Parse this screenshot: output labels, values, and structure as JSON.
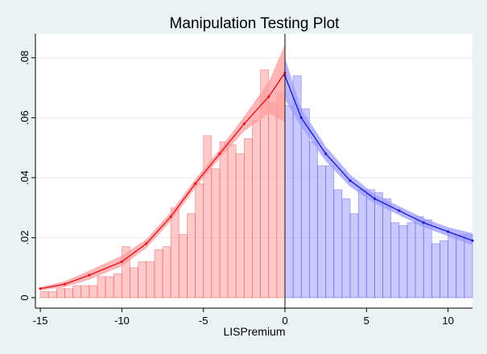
{
  "chart_data": {
    "type": "bar",
    "title": "Manipulation Testing Plot",
    "xlabel": "LISPremium",
    "ylabel": "",
    "xlim": [
      -15.3,
      11.5
    ],
    "ylim": [
      -0.0035,
      0.088
    ],
    "x_ticks": [
      -15,
      -10,
      -5,
      0,
      5,
      10
    ],
    "x_tick_labels": [
      "-15",
      "-10",
      "-5",
      "0",
      "5",
      "10"
    ],
    "y_ticks": [
      0,
      0.02,
      0.04,
      0.06,
      0.08
    ],
    "y_tick_labels": [
      "0",
      ".02",
      ".04",
      ".06",
      ".08"
    ],
    "grid": true,
    "cutoff": 0,
    "colors": {
      "background": "#eaf2f3",
      "plot_bg": "#ffffff",
      "left_line": "#e8141d",
      "left_fill": "#ff9c9c",
      "right_line": "#1e1ed2",
      "right_fill": "#9c9cff",
      "cutoff_line": "#333333",
      "grid": "#e4ecef"
    },
    "histogram": {
      "bin_width": 0.5,
      "left_bins": [
        {
          "x": -15.0,
          "y": 0.002
        },
        {
          "x": -14.5,
          "y": 0.002
        },
        {
          "x": -14.0,
          "y": 0.003
        },
        {
          "x": -13.5,
          "y": 0.003
        },
        {
          "x": -13.0,
          "y": 0.004
        },
        {
          "x": -12.5,
          "y": 0.004
        },
        {
          "x": -12.0,
          "y": 0.004
        },
        {
          "x": -11.5,
          "y": 0.007
        },
        {
          "x": -11.0,
          "y": 0.007
        },
        {
          "x": -10.5,
          "y": 0.008
        },
        {
          "x": -10.0,
          "y": 0.017
        },
        {
          "x": -9.5,
          "y": 0.01
        },
        {
          "x": -9.0,
          "y": 0.012
        },
        {
          "x": -8.5,
          "y": 0.012
        },
        {
          "x": -8.0,
          "y": 0.016
        },
        {
          "x": -7.5,
          "y": 0.017
        },
        {
          "x": -7.0,
          "y": 0.03
        },
        {
          "x": -6.5,
          "y": 0.021
        },
        {
          "x": -6.0,
          "y": 0.028
        },
        {
          "x": -5.5,
          "y": 0.038
        },
        {
          "x": -5.0,
          "y": 0.054
        },
        {
          "x": -4.5,
          "y": 0.043
        },
        {
          "x": -4.0,
          "y": 0.052
        },
        {
          "x": -3.5,
          "y": 0.051
        },
        {
          "x": -3.0,
          "y": 0.048
        },
        {
          "x": -2.5,
          "y": 0.053
        },
        {
          "x": -2.0,
          "y": 0.059
        },
        {
          "x": -1.5,
          "y": 0.076
        },
        {
          "x": -1.0,
          "y": 0.065
        },
        {
          "x": -0.5,
          "y": 0.068
        }
      ],
      "right_bins": [
        {
          "x": 0.0,
          "y": 0.064
        },
        {
          "x": 0.5,
          "y": 0.074
        },
        {
          "x": 1.0,
          "y": 0.063
        },
        {
          "x": 1.5,
          "y": 0.052
        },
        {
          "x": 2.0,
          "y": 0.044
        },
        {
          "x": 2.5,
          "y": 0.044
        },
        {
          "x": 3.0,
          "y": 0.036
        },
        {
          "x": 3.5,
          "y": 0.033
        },
        {
          "x": 4.0,
          "y": 0.028
        },
        {
          "x": 4.5,
          "y": 0.036
        },
        {
          "x": 5.0,
          "y": 0.036
        },
        {
          "x": 5.5,
          "y": 0.035
        },
        {
          "x": 6.0,
          "y": 0.033
        },
        {
          "x": 6.5,
          "y": 0.025
        },
        {
          "x": 7.0,
          "y": 0.024
        },
        {
          "x": 7.5,
          "y": 0.025
        },
        {
          "x": 8.0,
          "y": 0.027
        },
        {
          "x": 8.5,
          "y": 0.026
        },
        {
          "x": 9.0,
          "y": 0.018
        },
        {
          "x": 9.5,
          "y": 0.019
        },
        {
          "x": 10.0,
          "y": 0.021
        },
        {
          "x": 10.5,
          "y": 0.021
        },
        {
          "x": 11.0,
          "y": 0.021
        }
      ]
    },
    "series": [
      {
        "side": "left",
        "estimate": [
          [
            -15.0,
            0.003
          ],
          [
            -13.5,
            0.0045
          ],
          [
            -12.0,
            0.0075
          ],
          [
            -10.0,
            0.012
          ],
          [
            -8.5,
            0.018
          ],
          [
            -7.0,
            0.027
          ],
          [
            -5.5,
            0.038
          ],
          [
            -4.0,
            0.048
          ],
          [
            -2.5,
            0.058
          ],
          [
            -1.0,
            0.067
          ],
          [
            0.0,
            0.075
          ]
        ],
        "ci_upper": [
          [
            -15.0,
            0.0035
          ],
          [
            -13.5,
            0.0055
          ],
          [
            -12.0,
            0.009
          ],
          [
            -10.0,
            0.014
          ],
          [
            -8.5,
            0.0195
          ],
          [
            -7.0,
            0.0285
          ],
          [
            -5.5,
            0.0395
          ],
          [
            -4.0,
            0.0495
          ],
          [
            -2.5,
            0.0605
          ],
          [
            -1.0,
            0.072
          ],
          [
            0.0,
            0.0845
          ]
        ],
        "ci_lower": [
          [
            -15.0,
            0.0025
          ],
          [
            -13.5,
            0.0035
          ],
          [
            -12.0,
            0.006
          ],
          [
            -10.0,
            0.0105
          ],
          [
            -8.5,
            0.0165
          ],
          [
            -7.0,
            0.0255
          ],
          [
            -5.5,
            0.0365
          ],
          [
            -4.0,
            0.0465
          ],
          [
            -2.5,
            0.0555
          ],
          [
            -1.0,
            0.0615
          ],
          [
            0.0,
            0.0585
          ]
        ]
      },
      {
        "side": "right",
        "estimate": [
          [
            0.0,
            0.074
          ],
          [
            1.0,
            0.06
          ],
          [
            2.5,
            0.048
          ],
          [
            4.0,
            0.039
          ],
          [
            5.5,
            0.033
          ],
          [
            7.0,
            0.029
          ],
          [
            8.5,
            0.025
          ],
          [
            10.0,
            0.022
          ],
          [
            11.5,
            0.019
          ]
        ],
        "ci_upper": [
          [
            0.0,
            0.08
          ],
          [
            1.0,
            0.063
          ],
          [
            2.5,
            0.0505
          ],
          [
            4.0,
            0.041
          ],
          [
            5.5,
            0.0345
          ],
          [
            7.0,
            0.0305
          ],
          [
            8.5,
            0.0265
          ],
          [
            10.0,
            0.0235
          ],
          [
            11.5,
            0.0215
          ]
        ],
        "ci_lower": [
          [
            0.0,
            0.066
          ],
          [
            1.0,
            0.057
          ],
          [
            2.5,
            0.0455
          ],
          [
            4.0,
            0.037
          ],
          [
            5.5,
            0.0315
          ],
          [
            7.0,
            0.0275
          ],
          [
            8.5,
            0.0235
          ],
          [
            10.0,
            0.0205
          ],
          [
            11.5,
            0.0175
          ]
        ]
      }
    ]
  }
}
